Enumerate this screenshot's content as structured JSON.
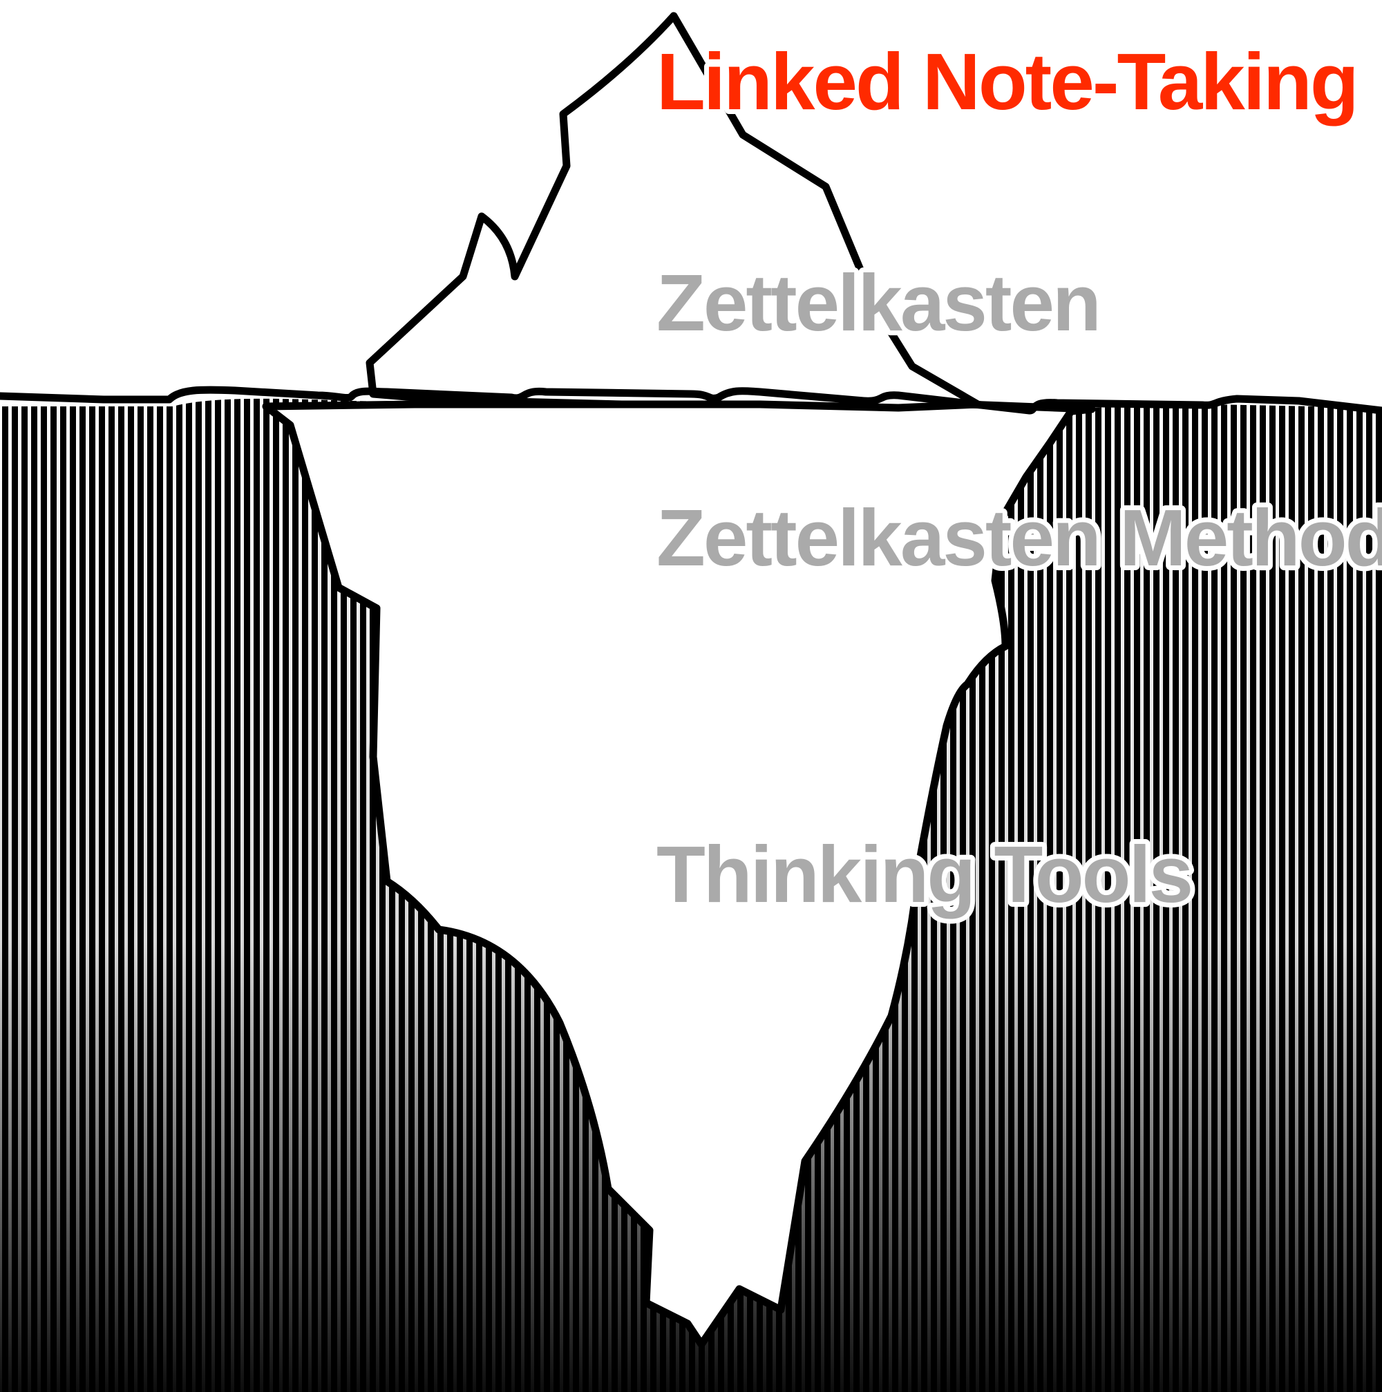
{
  "diagram": {
    "layers": [
      {
        "text": "Linked Note-Taking",
        "color": "#ff2a00"
      },
      {
        "text": "Zettelkasten",
        "color": "#aaaaaa"
      },
      {
        "text": "Zettelkasten Method",
        "color": "#aaaaaa"
      },
      {
        "text": "Thinking Tools",
        "color": "#aaaaaa"
      }
    ],
    "colors": {
      "outline": "#000000",
      "ice": "#ffffff",
      "water_stripes": "#000000",
      "halo": "#ffffff"
    }
  }
}
